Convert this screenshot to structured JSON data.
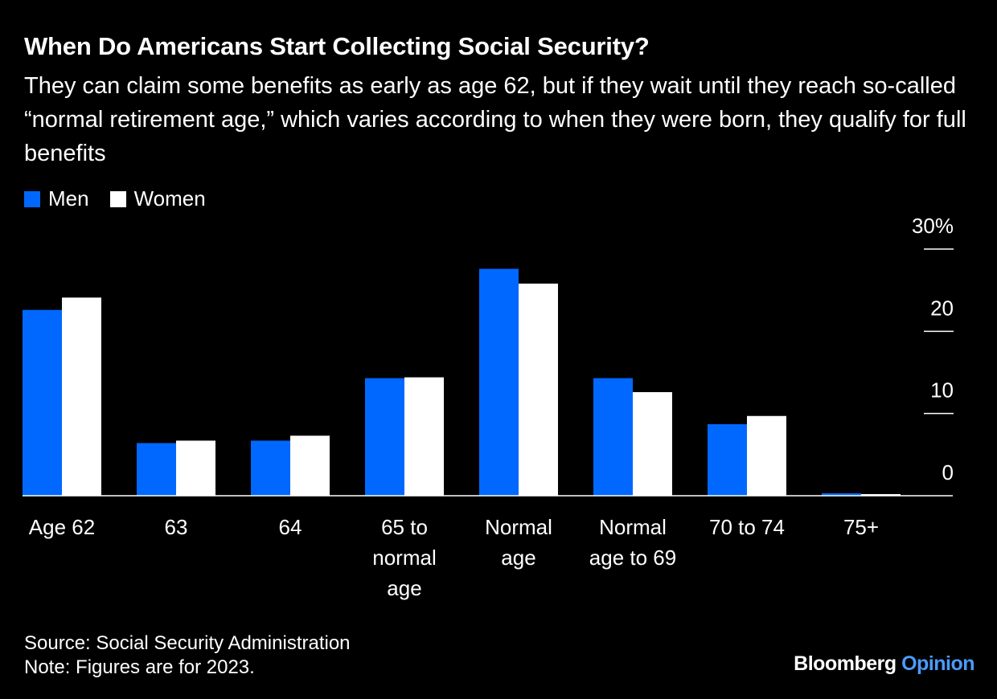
{
  "title": "When Do Americans Start Collecting Social Security?",
  "subtitle": "They can claim some benefits as early as age 62, but if they wait until they reach so-called “normal retirement age,” which varies according to when they were born, they qualify for full benefits",
  "source": "Source: Social Security Administration",
  "note": "Note: Figures are for 2023.",
  "brand": {
    "name": "Bloomberg",
    "accent": "Opinion"
  },
  "colors": {
    "men": "#0068ff",
    "women": "#ffffff",
    "axis": "#ffffff",
    "accent": "#4b9bff"
  },
  "chart_data": {
    "type": "bar",
    "categories": [
      [
        "Age 62"
      ],
      [
        "63"
      ],
      [
        "64"
      ],
      [
        "65 to",
        "normal",
        "age"
      ],
      [
        "Normal",
        "age"
      ],
      [
        "Normal",
        "age to 69"
      ],
      [
        "70 to 74"
      ],
      [
        "75+"
      ]
    ],
    "series": [
      {
        "name": "Men",
        "values": [
          22.6,
          6.4,
          6.7,
          14.3,
          27.6,
          14.3,
          8.7,
          0.3
        ]
      },
      {
        "name": "Women",
        "values": [
          24.1,
          6.7,
          7.3,
          14.4,
          25.8,
          12.6,
          9.7,
          0.2
        ]
      }
    ],
    "ylim": [
      0,
      30
    ],
    "yticks": [
      0,
      10,
      20,
      30
    ],
    "ytick_labels": [
      "0",
      "10",
      "20",
      "30%"
    ],
    "y_axis_position": "right",
    "legend_position": "top-left",
    "grid": false
  }
}
